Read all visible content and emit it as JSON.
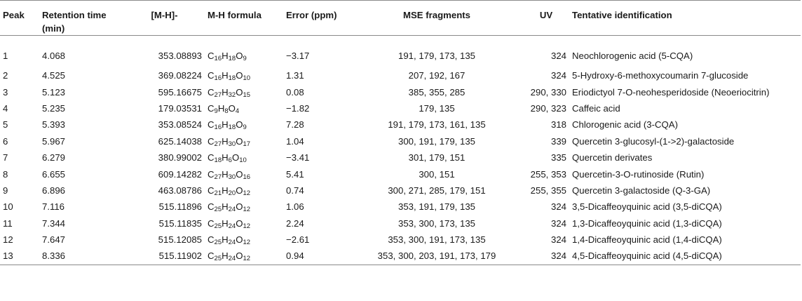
{
  "columns": [
    {
      "key": "peak",
      "label": "Peak"
    },
    {
      "key": "rt",
      "label": "Retention time (min)"
    },
    {
      "key": "mh",
      "label": "[M-H]-"
    },
    {
      "key": "formula",
      "label": "M-H formula"
    },
    {
      "key": "error",
      "label": "Error (ppm)"
    },
    {
      "key": "frag",
      "label": "MSE fragments"
    },
    {
      "key": "uv",
      "label": "UV"
    },
    {
      "key": "id",
      "label": "Tentative identification"
    }
  ],
  "rows": [
    {
      "peak": "1",
      "rt": "4.068",
      "mh": "353.08893",
      "formula": [
        [
          "C",
          "16"
        ],
        [
          "H",
          "18"
        ],
        [
          "O",
          "9"
        ]
      ],
      "error": "−3.17",
      "frag": "191, 179, 173, 135",
      "uv": "324",
      "id": "Neochlorogenic acid (5-CQA)"
    },
    {
      "peak": "2",
      "rt": "4.525",
      "mh": "369.08224",
      "formula": [
        [
          "C",
          "16"
        ],
        [
          "H",
          "18"
        ],
        [
          "O",
          "10"
        ]
      ],
      "error": "1.31",
      "frag": "207, 192, 167",
      "uv": "324",
      "id": "5-Hydroxy-6-methoxycoumarin 7-glucoside"
    },
    {
      "peak": "3",
      "rt": "5.123",
      "mh": "595.16675",
      "formula": [
        [
          "C",
          "27"
        ],
        [
          "H",
          "32"
        ],
        [
          "O",
          "15"
        ]
      ],
      "error": "0.08",
      "frag": "385, 355, 285",
      "uv": "290, 330",
      "id": "Eriodictyol 7-O-neohesperidoside (Neoeriocitrin)"
    },
    {
      "peak": "4",
      "rt": "5.235",
      "mh": "179.03531",
      "formula": [
        [
          "C",
          "9"
        ],
        [
          "H",
          "8"
        ],
        [
          "O",
          "4"
        ]
      ],
      "error": "−1.82",
      "frag": "179, 135",
      "uv": "290, 323",
      "id": "Caffeic acid"
    },
    {
      "peak": "5",
      "rt": "5.393",
      "mh": "353.08524",
      "formula": [
        [
          "C",
          "16"
        ],
        [
          "H",
          "18"
        ],
        [
          "O",
          "9"
        ]
      ],
      "error": "7.28",
      "frag": "191, 179, 173, 161, 135",
      "uv": "318",
      "id": "Chlorogenic acid (3-CQA)"
    },
    {
      "peak": "6",
      "rt": "5.967",
      "mh": "625.14038",
      "formula": [
        [
          "C",
          "27"
        ],
        [
          "H",
          "30"
        ],
        [
          "O",
          "17"
        ]
      ],
      "error": "1.04",
      "frag": "300, 191, 179, 135",
      "uv": "339",
      "id": "Quercetin 3-glucosyl-(1->2)-galactoside"
    },
    {
      "peak": "7",
      "rt": "6.279",
      "mh": "380.99002",
      "formula": [
        [
          "C",
          "18"
        ],
        [
          "H",
          "6"
        ],
        [
          "O",
          "10"
        ]
      ],
      "error": "−3.41",
      "frag": "301, 179, 151",
      "uv": "335",
      "id": "Quercetin derivates"
    },
    {
      "peak": "8",
      "rt": "6.655",
      "mh": "609.14282",
      "formula": [
        [
          "C",
          "27"
        ],
        [
          "H",
          "30"
        ],
        [
          "O",
          "16"
        ]
      ],
      "error": "5.41",
      "frag": "300, 151",
      "uv": "255, 353",
      "id": "Quercetin-3-O-rutinoside (Rutin)"
    },
    {
      "peak": "9",
      "rt": "6.896",
      "mh": "463.08786",
      "formula": [
        [
          "C",
          "21"
        ],
        [
          "H",
          "20"
        ],
        [
          "O",
          "12"
        ]
      ],
      "error": "0.74",
      "frag": "300, 271, 285, 179, 151",
      "uv": "255, 355",
      "id": "Quercetin 3-galactoside (Q-3-GA)"
    },
    {
      "peak": "10",
      "rt": "7.116",
      "mh": "515.11896",
      "formula": [
        [
          "C",
          "25"
        ],
        [
          "H",
          "24"
        ],
        [
          "O",
          "12"
        ]
      ],
      "error": "1.06",
      "frag": "353, 191, 179, 135",
      "uv": "324",
      "id": "3,5-Dicaffeoyquinic acid (3,5-diCQA)"
    },
    {
      "peak": "11",
      "rt": "7.344",
      "mh": "515.11835",
      "formula": [
        [
          "C",
          "25"
        ],
        [
          "H",
          "24"
        ],
        [
          "O",
          "12"
        ]
      ],
      "error": "2.24",
      "frag": "353, 300, 173, 135",
      "uv": "324",
      "id": "1,3-Dicaffeoyquinic acid (1,3-diCQA)"
    },
    {
      "peak": "12",
      "rt": "7.647",
      "mh": "515.12085",
      "formula": [
        [
          "C",
          "25"
        ],
        [
          "H",
          "24"
        ],
        [
          "O",
          "12"
        ]
      ],
      "error": "−2.61",
      "frag": "353, 300, 191, 173, 135",
      "uv": "324",
      "id": "1,4-Dicaffeoyquinic acid (1,4-diCQA)"
    },
    {
      "peak": "13",
      "rt": "8.336",
      "mh": "515.11902",
      "formula": [
        [
          "C",
          "25"
        ],
        [
          "H",
          "24"
        ],
        [
          "O",
          "12"
        ]
      ],
      "error": "0.94",
      "frag": "353, 300, 203, 191, 173, 179",
      "uv": "324",
      "id": "4,5-Dicaffeoyquinic acid (4,5-diCQA)"
    }
  ]
}
